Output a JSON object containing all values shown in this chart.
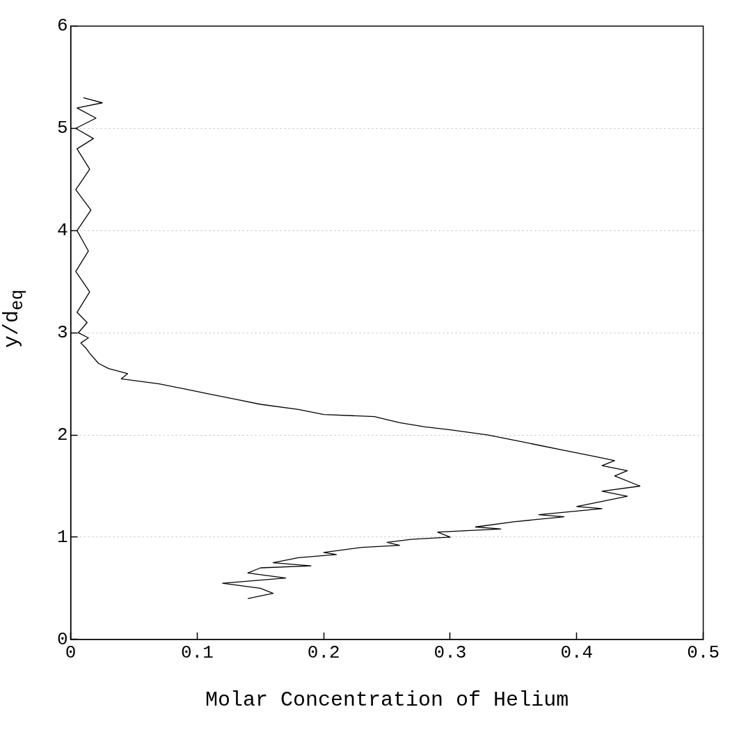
{
  "chart_data": {
    "type": "line",
    "xlabel": "Molar Concentration of Helium",
    "ylabel": "y/d$_{eq}$",
    "xlim": [
      0,
      0.5
    ],
    "xticks": [
      {
        "value": 0,
        "label": "0"
      },
      {
        "value": 0.1,
        "label": "0.1"
      },
      {
        "value": 0.2,
        "label": "0.2"
      },
      {
        "value": 0.3,
        "label": "0.3"
      },
      {
        "value": 0.4,
        "label": "0.4"
      },
      {
        "value": 0.5,
        "label": "0.5"
      }
    ],
    "ylim": [
      0,
      6
    ],
    "yticks": [
      0,
      1,
      2,
      3,
      4,
      5,
      6
    ],
    "grid": "y",
    "marker": "none",
    "line_style": "solid",
    "series": [
      {
        "color": "#000000",
        "x": [
          0.01,
          0.025,
          0.005,
          0.02,
          0.004,
          0.018,
          0.005,
          0.015,
          0.004,
          0.016,
          0.005,
          0.014,
          0.004,
          0.015,
          0.005,
          0.013,
          0.006,
          0.014,
          0.008,
          0.012,
          0.015,
          0.022,
          0.03,
          0.045,
          0.04,
          0.07,
          0.09,
          0.11,
          0.13,
          0.15,
          0.18,
          0.2,
          0.24,
          0.26,
          0.28,
          0.3,
          0.33,
          0.35,
          0.37,
          0.39,
          0.41,
          0.43,
          0.42,
          0.44,
          0.43,
          0.45,
          0.42,
          0.44,
          0.4,
          0.42,
          0.37,
          0.39,
          0.35,
          0.32,
          0.34,
          0.29,
          0.3,
          0.27,
          0.25,
          0.26,
          0.23,
          0.2,
          0.21,
          0.18,
          0.16,
          0.19,
          0.15,
          0.14,
          0.17,
          0.12,
          0.15,
          0.16,
          0.14
        ],
        "values": [
          5.3,
          5.25,
          5.2,
          5.1,
          5.0,
          4.9,
          4.8,
          4.6,
          4.4,
          4.2,
          4.0,
          3.8,
          3.6,
          3.4,
          3.2,
          3.1,
          3.0,
          2.95,
          2.9,
          2.85,
          2.8,
          2.7,
          2.65,
          2.6,
          2.55,
          2.5,
          2.45,
          2.4,
          2.35,
          2.3,
          2.25,
          2.2,
          2.18,
          2.12,
          2.08,
          2.05,
          2.0,
          1.95,
          1.9,
          1.85,
          1.8,
          1.75,
          1.7,
          1.65,
          1.6,
          1.5,
          1.45,
          1.4,
          1.3,
          1.28,
          1.22,
          1.2,
          1.15,
          1.1,
          1.08,
          1.05,
          1.0,
          0.98,
          0.95,
          0.92,
          0.9,
          0.85,
          0.83,
          0.8,
          0.75,
          0.72,
          0.7,
          0.65,
          0.6,
          0.55,
          0.5,
          0.45,
          0.4
        ]
      }
    ]
  }
}
